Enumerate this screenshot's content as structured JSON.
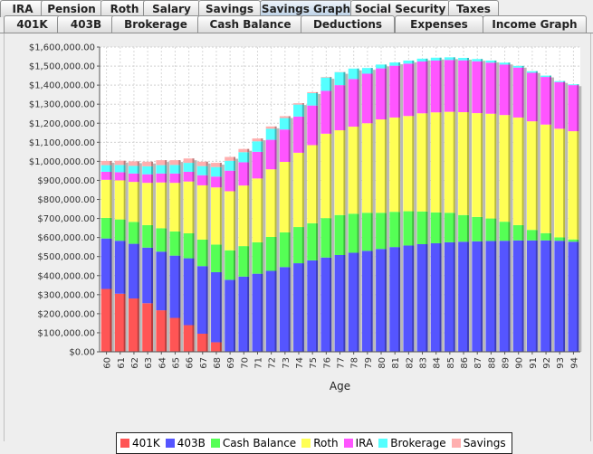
{
  "tabs_row1": [
    {
      "label": "IRA",
      "selected": false
    },
    {
      "label": "Pension",
      "selected": false
    },
    {
      "label": "Roth",
      "selected": false
    },
    {
      "label": "Salary",
      "selected": false
    },
    {
      "label": "Savings",
      "selected": false
    },
    {
      "label": "Savings Graph",
      "selected": true
    },
    {
      "label": "Social Security",
      "selected": false
    },
    {
      "label": "Taxes",
      "selected": false
    }
  ],
  "tabs_row2": [
    {
      "label": "401K"
    },
    {
      "label": "403B"
    },
    {
      "label": "Brokerage"
    },
    {
      "label": "Cash Balance"
    },
    {
      "label": "Deductions"
    },
    {
      "label": "Expenses"
    },
    {
      "label": "Income Graph"
    }
  ],
  "chart_data": {
    "type": "bar",
    "stacked": true,
    "xlabel": "Age",
    "ylabel": "",
    "ylim": [
      0,
      1600000
    ],
    "y_ticks": [
      "$0.00",
      "$100,000.00",
      "$200,000.00",
      "$300,000.00",
      "$400,000.00",
      "$500,000.00",
      "$600,000.00",
      "$700,000.00",
      "$800,000.00",
      "$900,000.00",
      "$1,000,000.00",
      "$1,100,000.00",
      "$1,200,000.00",
      "$1,300,000.00",
      "$1,400,000.00",
      "$1,500,000.00",
      "$1,600,000.00"
    ],
    "grid": true,
    "legend_position": "bottom",
    "categories": [
      "60",
      "61",
      "62",
      "63",
      "64",
      "65",
      "66",
      "67",
      "68",
      "69",
      "70",
      "71",
      "72",
      "73",
      "74",
      "75",
      "76",
      "77",
      "78",
      "79",
      "80",
      "81",
      "82",
      "83",
      "84",
      "85",
      "86",
      "87",
      "88",
      "89",
      "90",
      "91",
      "92",
      "93",
      "94"
    ],
    "series": [
      {
        "name": "401K",
        "color": "#ff5555",
        "values": [
          330000,
          305000,
          280000,
          255000,
          218000,
          178000,
          140000,
          95000,
          50000,
          0,
          0,
          0,
          0,
          0,
          0,
          0,
          0,
          0,
          0,
          0,
          0,
          0,
          0,
          0,
          0,
          0,
          0,
          0,
          0,
          0,
          0,
          0,
          0,
          0,
          0
        ]
      },
      {
        "name": "403B",
        "color": "#5555ff",
        "values": [
          265000,
          278000,
          287000,
          292000,
          308000,
          327000,
          351000,
          355000,
          368000,
          378000,
          395000,
          410000,
          425000,
          445000,
          465000,
          480000,
          495000,
          508000,
          520000,
          530000,
          540000,
          550000,
          558000,
          565000,
          570000,
          575000,
          578000,
          580000,
          582000,
          583000,
          585000,
          585000,
          585000,
          583000,
          578000
        ]
      },
      {
        "name": "Cash Balance",
        "color": "#55ff55",
        "values": [
          108000,
          112000,
          115000,
          118000,
          123000,
          127000,
          131000,
          139000,
          145000,
          155000,
          160000,
          165000,
          178000,
          182000,
          190000,
          195000,
          207000,
          210000,
          205000,
          200000,
          190000,
          185000,
          180000,
          172000,
          162000,
          155000,
          140000,
          128000,
          118000,
          100000,
          80000,
          55000,
          38000,
          18000,
          12000
        ]
      },
      {
        "name": "Roth",
        "color": "#ffff55",
        "values": [
          200000,
          205000,
          210000,
          222000,
          240000,
          255000,
          272000,
          285000,
          300000,
          310000,
          318000,
          335000,
          355000,
          370000,
          390000,
          410000,
          443000,
          445000,
          457000,
          470000,
          490000,
          495000,
          500000,
          515000,
          525000,
          530000,
          540000,
          545000,
          550000,
          560000,
          565000,
          570000,
          570000,
          570000,
          568000
        ]
      },
      {
        "name": "IRA",
        "color": "#ff55ff",
        "values": [
          42000,
          43000,
          44000,
          45000,
          47000,
          49000,
          51000,
          53000,
          57000,
          108000,
          122000,
          140000,
          155000,
          170000,
          190000,
          208000,
          225000,
          237000,
          250000,
          260000,
          268000,
          272000,
          275000,
          272000,
          272000,
          272000,
          272000,
          272000,
          268000,
          265000,
          262000,
          255000,
          250000,
          245000,
          242000
        ]
      },
      {
        "name": "Brokerage",
        "color": "#55ffff",
        "values": [
          35000,
          38000,
          40000,
          42000,
          44000,
          45000,
          47000,
          48000,
          50000,
          52000,
          53000,
          55000,
          58000,
          60000,
          63000,
          65000,
          70000,
          68000,
          55000,
          30000,
          20000,
          17000,
          16000,
          15000,
          15000,
          14000,
          13000,
          12000,
          11000,
          10000,
          9000,
          8000,
          7000,
          5000,
          4000
        ]
      },
      {
        "name": "Savings",
        "color": "#ffafaf",
        "values": [
          22000,
          22000,
          24000,
          24000,
          26000,
          25000,
          23000,
          23000,
          22000,
          20000,
          17000,
          15000,
          12000,
          10000,
          7000,
          5000,
          3000,
          1000,
          0,
          0,
          0,
          0,
          0,
          0,
          0,
          0,
          0,
          0,
          0,
          0,
          0,
          0,
          0,
          0,
          0
        ]
      }
    ]
  }
}
